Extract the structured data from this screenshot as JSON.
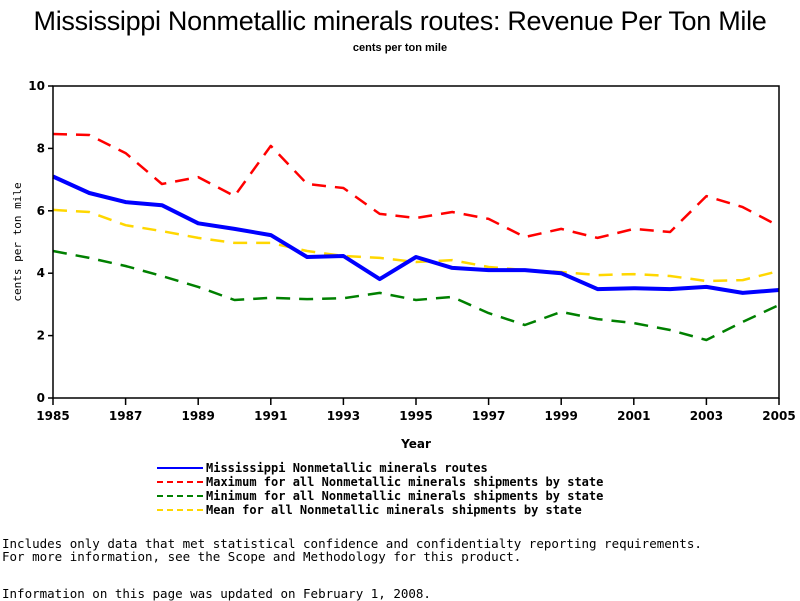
{
  "chart_data": {
    "type": "line",
    "title": "Mississippi Nonmetallic minerals routes: Revenue Per Ton Mile",
    "subtitle": "cents per ton mile",
    "xlabel": "Year",
    "ylabel": "cents per ton mile",
    "xlim": [
      1985,
      2005
    ],
    "ylim": [
      0,
      10
    ],
    "x_ticks": [
      "1985",
      "1987",
      "1989",
      "1991",
      "1993",
      "1995",
      "1997",
      "1999",
      "2001",
      "2003",
      "2005"
    ],
    "y_ticks": [
      "0",
      "2",
      "4",
      "6",
      "8",
      "10"
    ],
    "grid": false,
    "legend_position": "bottom",
    "x": [
      1985,
      1986,
      1987,
      1988,
      1989,
      1990,
      1991,
      1992,
      1993,
      1994,
      1995,
      1996,
      1997,
      1998,
      1999,
      2000,
      2001,
      2002,
      2003,
      2004,
      2005
    ],
    "series": [
      {
        "name": "Mississippi Nonmetallic minerals routes",
        "color": "#0000ff",
        "style": "solid",
        "values": [
          7.1,
          6.57,
          6.28,
          6.18,
          5.6,
          5.42,
          5.22,
          4.52,
          4.55,
          3.81,
          4.52,
          4.17,
          4.1,
          4.1,
          4.0,
          3.49,
          3.52,
          3.49,
          3.56,
          3.37,
          3.46
        ]
      },
      {
        "name": "Maximum for all Nonmetallic minerals shipments by state",
        "color": "#ff0000",
        "style": "dashed",
        "values": [
          8.46,
          8.43,
          7.85,
          6.86,
          7.08,
          6.47,
          8.08,
          6.86,
          6.73,
          5.9,
          5.77,
          5.96,
          5.74,
          5.16,
          5.42,
          5.13,
          5.42,
          5.32,
          6.47,
          6.12,
          5.51
        ]
      },
      {
        "name": "Minimum for all Nonmetallic minerals shipments by state",
        "color": "#008000",
        "style": "dashed",
        "values": [
          4.71,
          4.49,
          4.23,
          3.91,
          3.56,
          3.14,
          3.21,
          3.17,
          3.2,
          3.37,
          3.14,
          3.24,
          2.72,
          2.34,
          2.76,
          2.53,
          2.4,
          2.18,
          1.86,
          2.44,
          2.98
        ]
      },
      {
        "name": "Mean for all Nonmetallic minerals shipments by state",
        "color": "#ffd700",
        "style": "dashed",
        "values": [
          6.03,
          5.96,
          5.54,
          5.35,
          5.13,
          4.97,
          4.97,
          4.71,
          4.55,
          4.49,
          4.36,
          4.42,
          4.2,
          4.1,
          4.04,
          3.94,
          3.97,
          3.91,
          3.75,
          3.78,
          4.07
        ]
      }
    ]
  },
  "notes": {
    "line1": "Includes only data that met statistical confidence and confidentialty reporting requirements.",
    "line2": "For more information, see the Scope and Methodology for this product.",
    "updated": "Information on this page was updated on February 1, 2008."
  }
}
